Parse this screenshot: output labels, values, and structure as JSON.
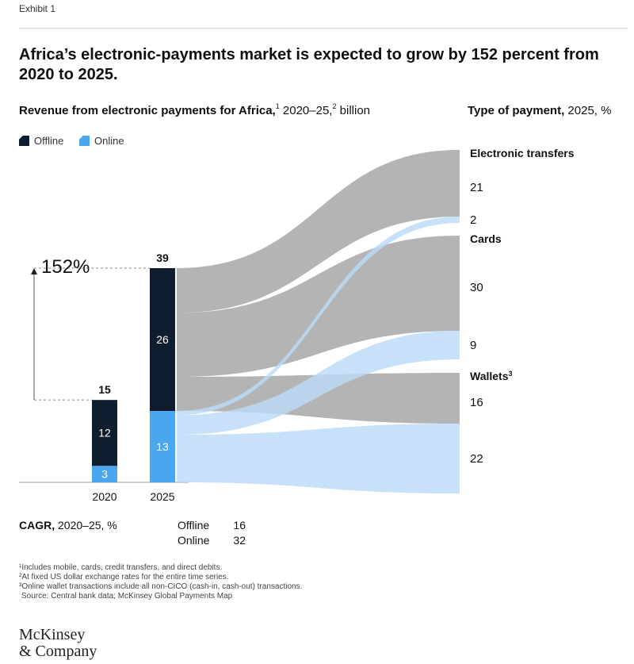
{
  "exhibit_label": "Exhibit 1",
  "title": "Africa’s electronic-payments market is expected to grow by 152 percent from 2020 to 2025.",
  "subtitle": {
    "bold": "Revenue from electronic payments for Africa,",
    "note1": "1",
    "years": " 2020–25,",
    "note2": "2",
    "unit": " billion"
  },
  "right_header": {
    "bold": "Type of payment,",
    "rest": " 2025, %"
  },
  "legend": [
    {
      "label": "Offline",
      "color": "#0f1e2e"
    },
    {
      "label": "Online",
      "color": "#4ba6f0"
    }
  ],
  "growth_label": "152%",
  "colors": {
    "offline": "#0f1e2e",
    "online": "#4ba6f0",
    "flow_offline": "#a3a3a3",
    "flow_online": "#b9dbf7"
  },
  "chart_data": {
    "type": "bar",
    "stacked": true,
    "categories": [
      "2020",
      "2025"
    ],
    "totals": [
      15,
      39
    ],
    "series": [
      {
        "name": "Offline",
        "values": [
          12,
          26
        ]
      },
      {
        "name": "Online",
        "values": [
          3,
          13
        ]
      }
    ],
    "growth_pct": 152,
    "payment_types_2025": [
      {
        "name": "Electronic transfers",
        "note": "",
        "offline": 21,
        "online": 2
      },
      {
        "name": "Cards",
        "note": "",
        "offline": 30,
        "online": 9
      },
      {
        "name": "Wallets",
        "note": "3",
        "offline": 16,
        "online": 22
      }
    ]
  },
  "cagr": {
    "label_bold": "CAGR,",
    "label_rest": " 2020–25, %",
    "rows": [
      {
        "name": "Offline",
        "value": "16"
      },
      {
        "name": "Online",
        "value": "32"
      }
    ]
  },
  "footnotes": [
    "¹Includes mobile, cards, credit transfers, and direct debits.",
    "²At fixed US dollar exchange rates for the entire time series.",
    "³Online wallet transactions include all non-CICO (cash-in, cash-out) transactions.",
    "Source: Central bank data; McKinsey Global Payments Map"
  ],
  "logo": {
    "line1": "McKinsey",
    "line2": "& Company"
  }
}
